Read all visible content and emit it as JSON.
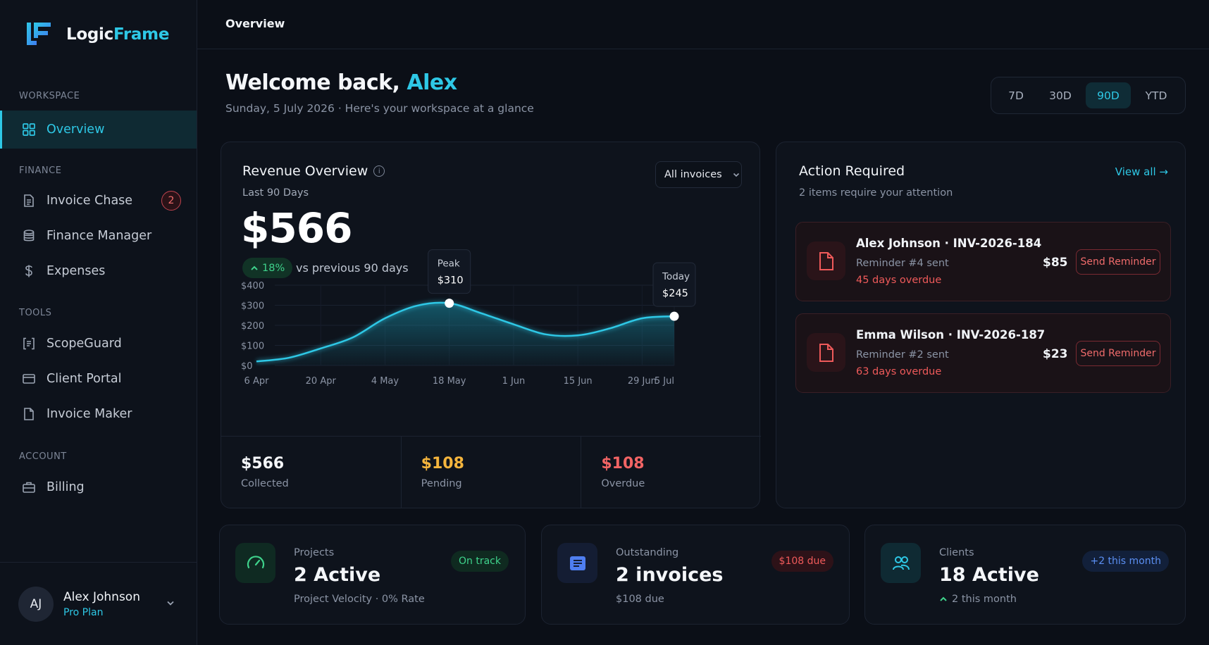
{
  "brand": {
    "name_part1": "Logic",
    "name_part2": "Frame"
  },
  "sidebar": {
    "sections": {
      "workspace": "WORKSPACE",
      "finance": "FINANCE",
      "tools": "TOOLS",
      "account": "ACCOUNT"
    },
    "items": [
      {
        "label": "Overview",
        "icon": "grid-icon",
        "active": true
      },
      {
        "label": "Invoice Chase",
        "icon": "document-icon",
        "badge": "2"
      },
      {
        "label": "Finance Manager",
        "icon": "database-icon"
      },
      {
        "label": "Expenses",
        "icon": "dollar-icon"
      },
      {
        "label": "ScopeGuard",
        "icon": "bracket-list-icon"
      },
      {
        "label": "Client Portal",
        "icon": "card-icon"
      },
      {
        "label": "Invoice Maker",
        "icon": "file-icon"
      },
      {
        "label": "Billing",
        "icon": "briefcase-icon"
      }
    ],
    "user": {
      "initials": "AJ",
      "name": "Alex Johnson",
      "plan": "Pro Plan"
    }
  },
  "topbar": {
    "title": "Overview"
  },
  "header": {
    "welcome": "Welcome back, ",
    "name": "Alex",
    "subtitle": "Sunday, 5 July 2026 · Here's your workspace at a glance",
    "ranges": [
      "7D",
      "30D",
      "90D",
      "YTD"
    ],
    "active_range": "90D"
  },
  "revenue": {
    "title": "Revenue Overview",
    "period": "Last 90 Days",
    "amount": "$566",
    "growth": "18%",
    "growth_text": "vs previous 90 days",
    "filter": "All invoices",
    "stats": [
      {
        "value": "$566",
        "label": "Collected",
        "color": "#f4f6f9"
      },
      {
        "value": "$108",
        "label": "Pending",
        "color": "#f5b53d"
      },
      {
        "value": "$108",
        "label": "Overdue",
        "color": "#f26464"
      }
    ]
  },
  "chart_data": {
    "type": "area",
    "x": [
      "6 Apr",
      "13 Apr",
      "20 Apr",
      "27 Apr",
      "4 May",
      "11 May",
      "18 May",
      "25 May",
      "1 Jun",
      "8 Jun",
      "15 Jun",
      "22 Jun",
      "29 Jun",
      "5 Jul"
    ],
    "xticks": [
      "6 Apr",
      "20 Apr",
      "4 May",
      "18 May",
      "1 Jun",
      "15 Jun",
      "29 Jun",
      "5 Jul"
    ],
    "values": [
      20,
      38,
      85,
      140,
      235,
      298,
      310,
      260,
      205,
      155,
      150,
      185,
      235,
      245
    ],
    "yticks": [
      "$0",
      "$100",
      "$200",
      "$300",
      "$400"
    ],
    "ylim": [
      0,
      400
    ],
    "annotations": [
      {
        "label": "Peak",
        "value": "$310",
        "x": "18 May"
      },
      {
        "label": "Today",
        "value": "$245",
        "x": "5 Jul"
      }
    ],
    "color": "#2ec8e6"
  },
  "action": {
    "title": "Action Required",
    "subtitle": "2 items require your attention",
    "view_all": "View all →",
    "items": [
      {
        "name": "Alex Johnson · INV-2026-184",
        "meta": "Reminder #4 sent",
        "overdue": "45 days overdue",
        "amount": "$85",
        "button": "Send Reminder"
      },
      {
        "name": "Emma Wilson · INV-2026-187",
        "meta": "Reminder #2 sent",
        "overdue": "63 days overdue",
        "amount": "$23",
        "button": "Send Reminder"
      }
    ]
  },
  "stats": {
    "projects": {
      "label": "Projects",
      "value": "2 Active",
      "foot": "Project Velocity · 0% Rate",
      "badge": "On track"
    },
    "outstanding": {
      "label": "Outstanding",
      "value": "2 invoices",
      "foot": "$108 due",
      "badge": "$108 due"
    },
    "clients": {
      "label": "Clients",
      "value": "18 Active",
      "foot": "2 this month",
      "badge": "+2 this month"
    }
  }
}
